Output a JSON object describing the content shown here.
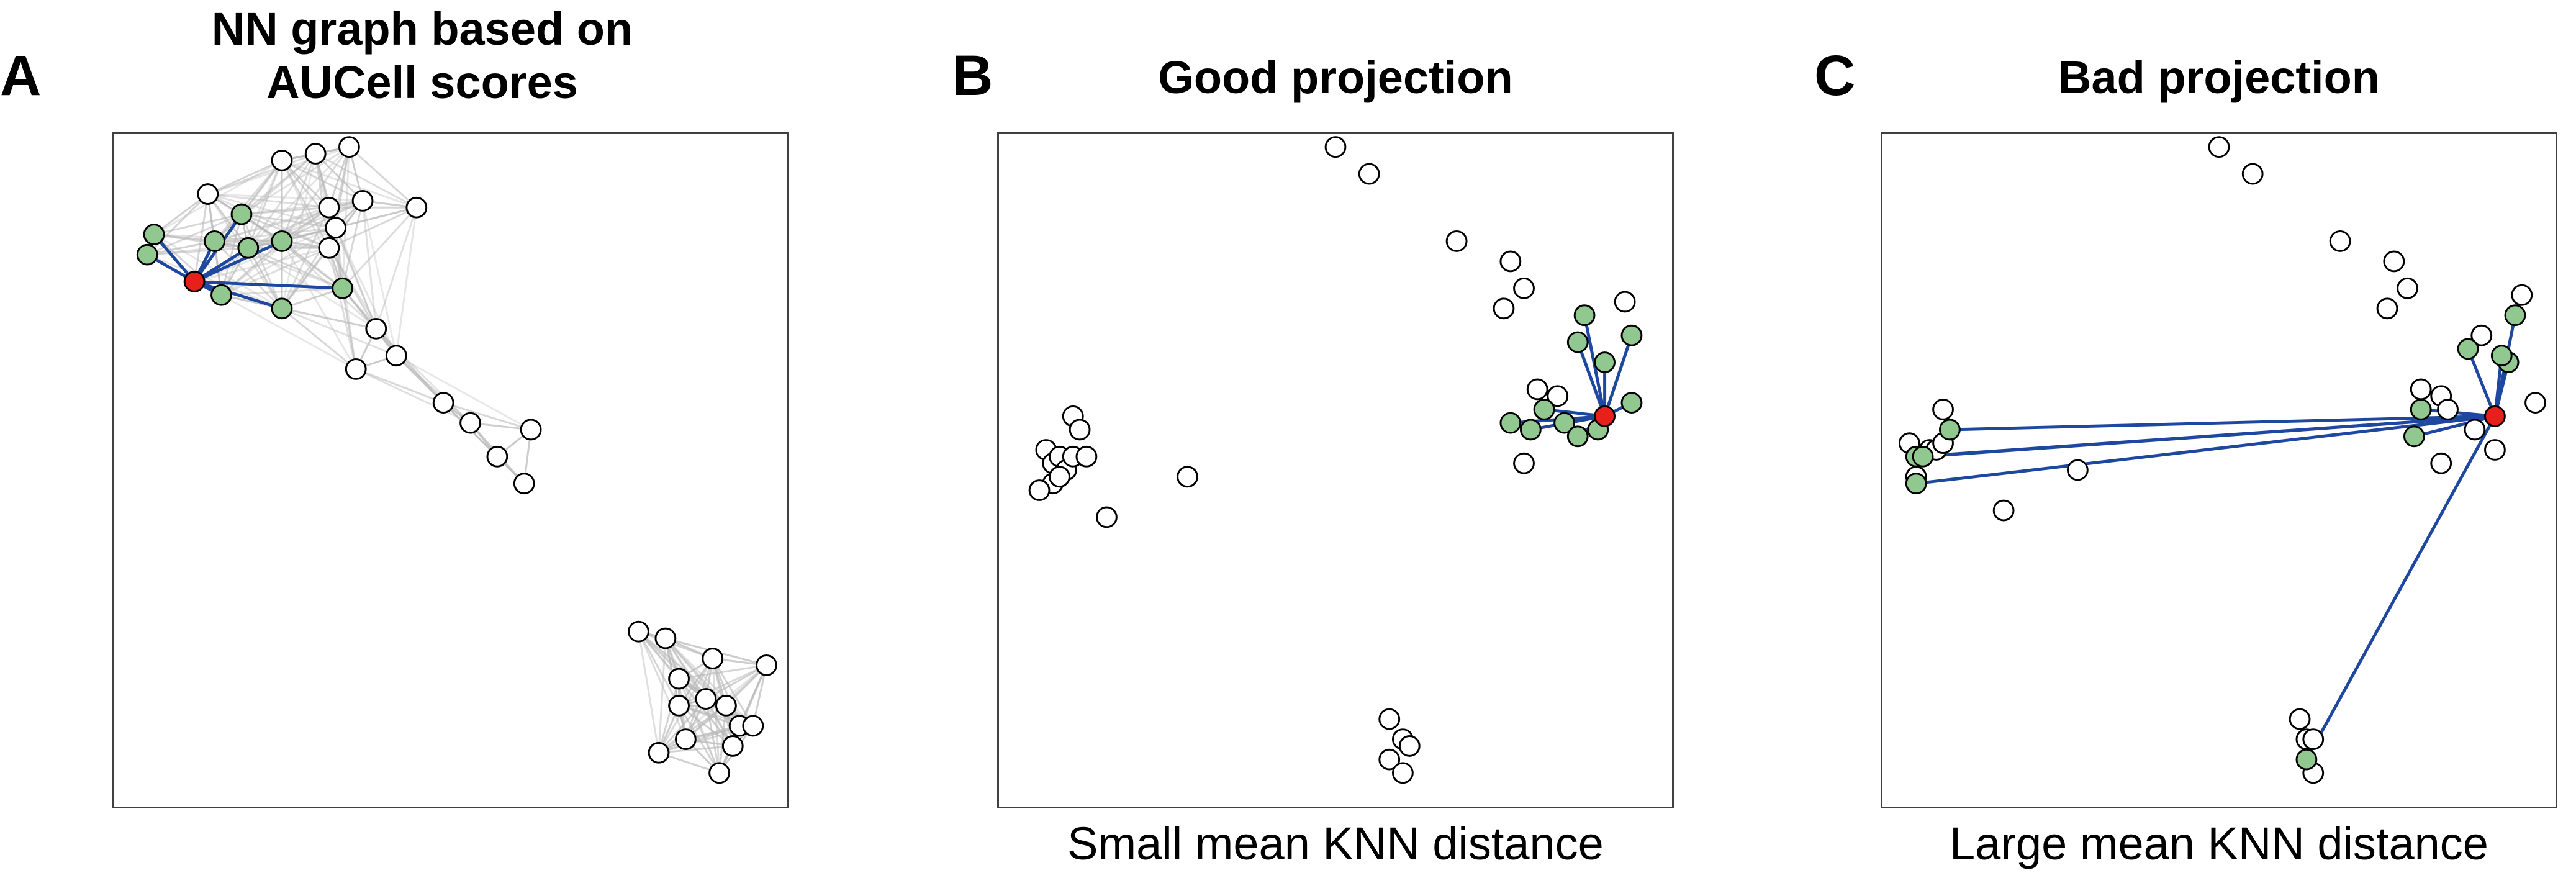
{
  "colors": {
    "node_fill": "#ffffff",
    "node_stroke": "#000000",
    "neighbor_fill": "#90c890",
    "query_fill": "#e8201c",
    "knn_edge": "#1e48a0",
    "graph_edge": "#b8b8b8"
  },
  "panels": [
    {
      "letter": "A",
      "title_lines": [
        "NN graph based on",
        "AUCell scores"
      ],
      "subtitle": "",
      "query": [
        0.12,
        0.78
      ],
      "neighbors": [
        [
          0.06,
          0.85
        ],
        [
          0.05,
          0.82
        ],
        [
          0.19,
          0.88
        ],
        [
          0.15,
          0.84
        ],
        [
          0.2,
          0.83
        ],
        [
          0.25,
          0.84
        ],
        [
          0.16,
          0.76
        ],
        [
          0.25,
          0.74
        ],
        [
          0.34,
          0.77
        ]
      ],
      "others": [
        [
          0.25,
          0.96
        ],
        [
          0.3,
          0.97
        ],
        [
          0.35,
          0.98
        ],
        [
          0.14,
          0.91
        ],
        [
          0.32,
          0.89
        ],
        [
          0.37,
          0.9
        ],
        [
          0.45,
          0.89
        ],
        [
          0.33,
          0.86
        ],
        [
          0.32,
          0.83
        ],
        [
          0.39,
          0.71
        ],
        [
          0.36,
          0.65
        ],
        [
          0.42,
          0.67
        ],
        [
          0.49,
          0.6
        ],
        [
          0.53,
          0.57
        ],
        [
          0.57,
          0.52
        ],
        [
          0.62,
          0.56
        ],
        [
          0.61,
          0.48
        ],
        [
          0.78,
          0.26
        ],
        [
          0.82,
          0.25
        ],
        [
          0.84,
          0.19
        ],
        [
          0.89,
          0.22
        ],
        [
          0.97,
          0.21
        ],
        [
          0.84,
          0.15
        ],
        [
          0.88,
          0.16
        ],
        [
          0.91,
          0.15
        ],
        [
          0.93,
          0.12
        ],
        [
          0.85,
          0.1
        ],
        [
          0.92,
          0.09
        ],
        [
          0.81,
          0.08
        ],
        [
          0.95,
          0.12
        ],
        [
          0.9,
          0.05
        ]
      ]
    },
    {
      "letter": "B",
      "title_lines": [
        "Good projection"
      ],
      "subtitle": "Small mean KNN distance",
      "query": [
        0.9,
        0.58
      ],
      "neighbors": [
        [
          0.86,
          0.69
        ],
        [
          0.94,
          0.7
        ],
        [
          0.87,
          0.73
        ],
        [
          0.9,
          0.66
        ],
        [
          0.94,
          0.6
        ],
        [
          0.81,
          0.59
        ],
        [
          0.79,
          0.56
        ],
        [
          0.84,
          0.57
        ],
        [
          0.89,
          0.56
        ],
        [
          0.76,
          0.57
        ],
        [
          0.86,
          0.55
        ]
      ],
      "others": [
        [
          0.5,
          0.98
        ],
        [
          0.55,
          0.94
        ],
        [
          0.68,
          0.84
        ],
        [
          0.76,
          0.81
        ],
        [
          0.78,
          0.77
        ],
        [
          0.75,
          0.74
        ],
        [
          0.93,
          0.75
        ],
        [
          0.8,
          0.62
        ],
        [
          0.83,
          0.61
        ],
        [
          0.78,
          0.51
        ],
        [
          0.11,
          0.58
        ],
        [
          0.12,
          0.56
        ],
        [
          0.07,
          0.53
        ],
        [
          0.08,
          0.51
        ],
        [
          0.09,
          0.52
        ],
        [
          0.1,
          0.5
        ],
        [
          0.11,
          0.52
        ],
        [
          0.13,
          0.52
        ],
        [
          0.08,
          0.48
        ],
        [
          0.06,
          0.47
        ],
        [
          0.09,
          0.49
        ],
        [
          0.28,
          0.49
        ],
        [
          0.16,
          0.43
        ],
        [
          0.58,
          0.13
        ],
        [
          0.6,
          0.1
        ],
        [
          0.61,
          0.09
        ],
        [
          0.58,
          0.07
        ],
        [
          0.6,
          0.05
        ]
      ]
    },
    {
      "letter": "C",
      "title_lines": [
        "Bad projection"
      ],
      "subtitle": "Large mean KNN distance",
      "query": [
        0.91,
        0.58
      ],
      "neighbors": [
        [
          0.94,
          0.73
        ],
        [
          0.87,
          0.68
        ],
        [
          0.93,
          0.66
        ],
        [
          0.92,
          0.67
        ],
        [
          0.8,
          0.59
        ],
        [
          0.79,
          0.55
        ],
        [
          0.1,
          0.56
        ],
        [
          0.05,
          0.52
        ],
        [
          0.06,
          0.52
        ],
        [
          0.05,
          0.48
        ],
        [
          0.63,
          0.07
        ]
      ],
      "others": [
        [
          0.5,
          0.98
        ],
        [
          0.55,
          0.94
        ],
        [
          0.68,
          0.84
        ],
        [
          0.76,
          0.81
        ],
        [
          0.78,
          0.77
        ],
        [
          0.75,
          0.74
        ],
        [
          0.89,
          0.7
        ],
        [
          0.95,
          0.76
        ],
        [
          0.8,
          0.62
        ],
        [
          0.83,
          0.61
        ],
        [
          0.97,
          0.6
        ],
        [
          0.84,
          0.59
        ],
        [
          0.88,
          0.56
        ],
        [
          0.91,
          0.53
        ],
        [
          0.83,
          0.51
        ],
        [
          0.09,
          0.59
        ],
        [
          0.04,
          0.54
        ],
        [
          0.07,
          0.53
        ],
        [
          0.08,
          0.53
        ],
        [
          0.09,
          0.54
        ],
        [
          0.05,
          0.49
        ],
        [
          0.29,
          0.5
        ],
        [
          0.18,
          0.44
        ],
        [
          0.62,
          0.13
        ],
        [
          0.63,
          0.1
        ],
        [
          0.64,
          0.1
        ],
        [
          0.64,
          0.05
        ]
      ]
    }
  ]
}
